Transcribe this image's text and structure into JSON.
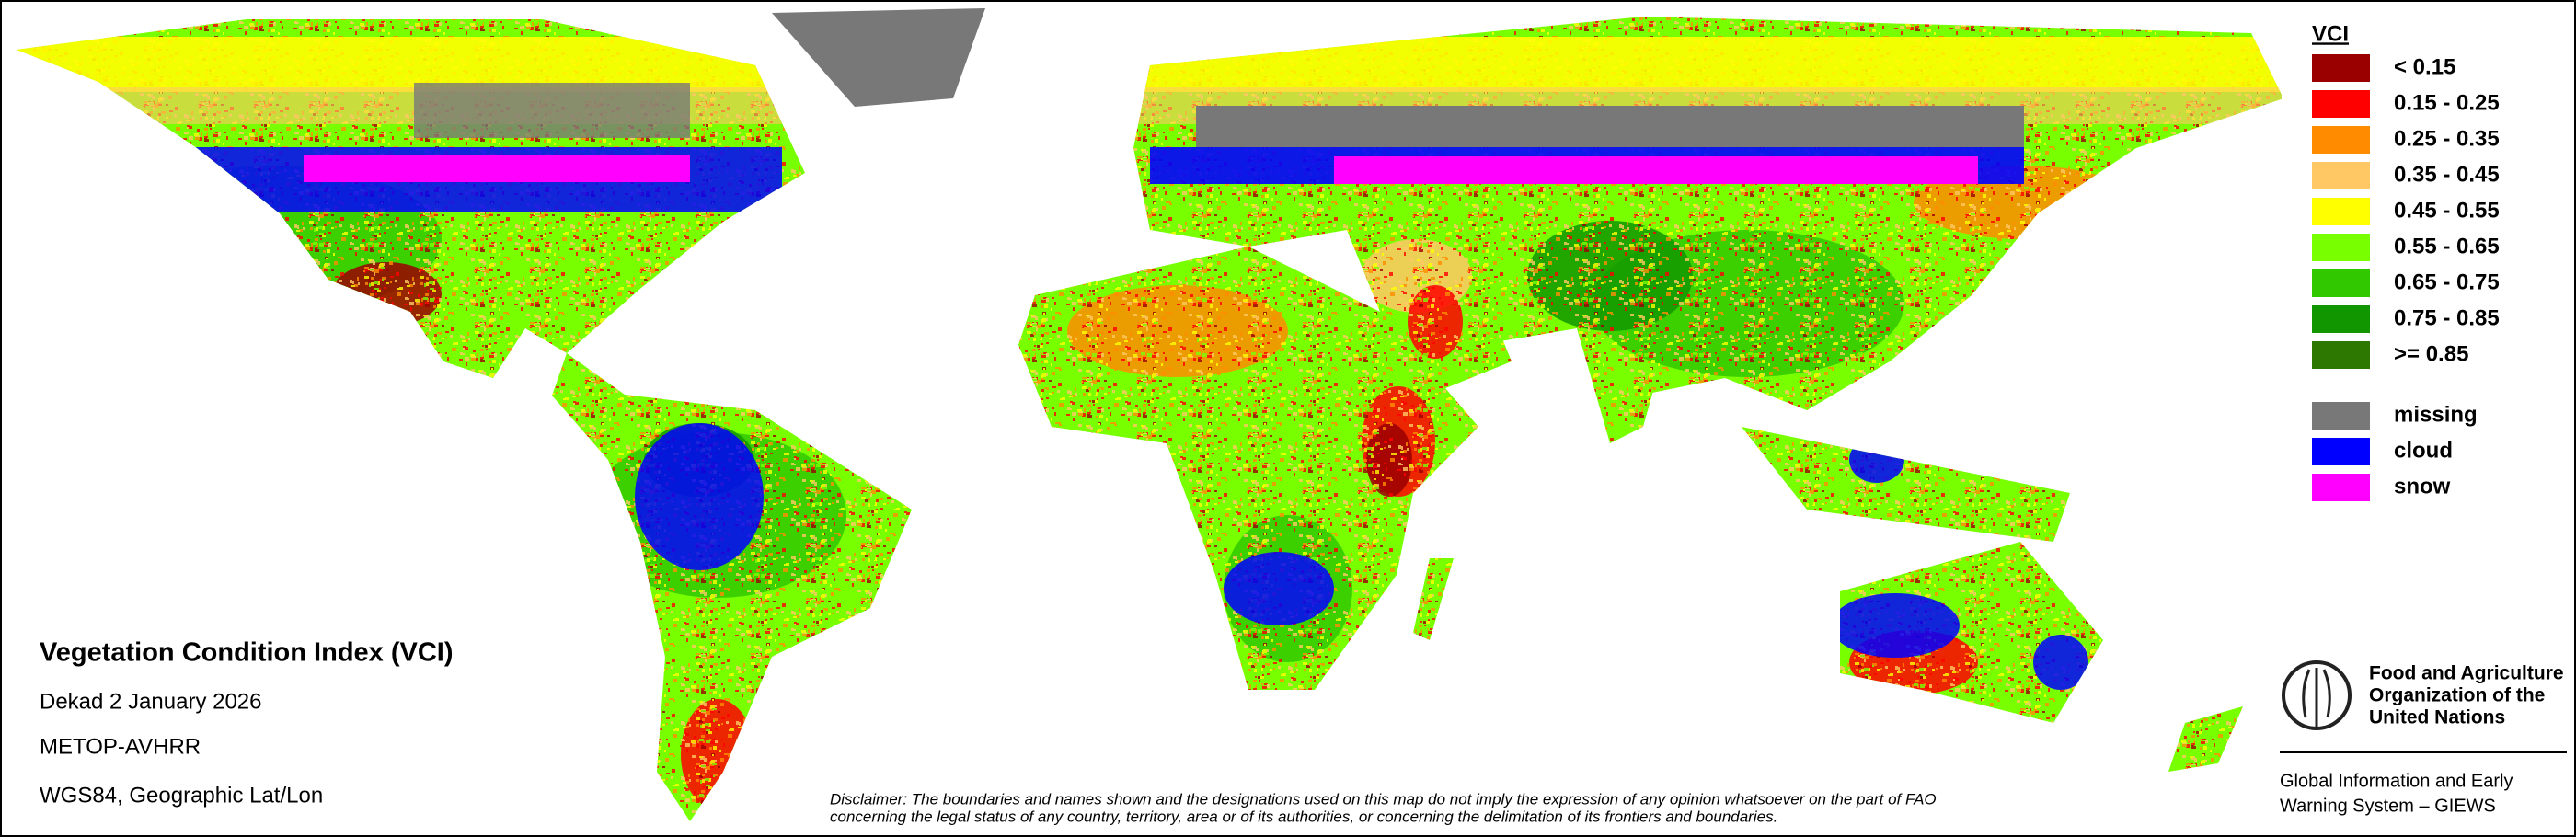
{
  "legend": {
    "title": "VCI",
    "scale": [
      {
        "label": "< 0.15",
        "color": "#9b0000"
      },
      {
        "label": "0.15 - 0.25",
        "color": "#ff0000"
      },
      {
        "label": "0.25 - 0.35",
        "color": "#ff8c00"
      },
      {
        "label": "0.35 - 0.45",
        "color": "#ffc864"
      },
      {
        "label": "0.45 - 0.55",
        "color": "#ffff00"
      },
      {
        "label": "0.55 - 0.65",
        "color": "#78ff00"
      },
      {
        "label": "0.65 - 0.75",
        "color": "#32c800"
      },
      {
        "label": "0.75 - 0.85",
        "color": "#129600"
      },
      {
        "label": ">= 0.85",
        "color": "#2d7800"
      }
    ],
    "masks": [
      {
        "label": "missing",
        "color": "#787878"
      },
      {
        "label": "cloud",
        "color": "#0000ff"
      },
      {
        "label": "snow",
        "color": "#ff00ff"
      }
    ]
  },
  "info": {
    "title": "Vegetation Condition Index (VCI)",
    "dekad": "Dekad 2 January 2026",
    "sensor": "METOP-AVHRR",
    "projection": "WGS84, Geographic Lat/Lon"
  },
  "disclaimer": [
    "Disclaimer: The boundaries and names shown and the designations used on this map do not imply the expression of any opinion whatsoever on the part of FAO",
    "concerning the legal status of any country, territory, area or of its authorities, or concerning the delimitation of its frontiers and boundaries."
  ],
  "organization": [
    "Food and Agriculture",
    "Organization of the",
    "United Nations"
  ],
  "system": [
    "Global Information and Early",
    "Warning System – GIEWS"
  ]
}
